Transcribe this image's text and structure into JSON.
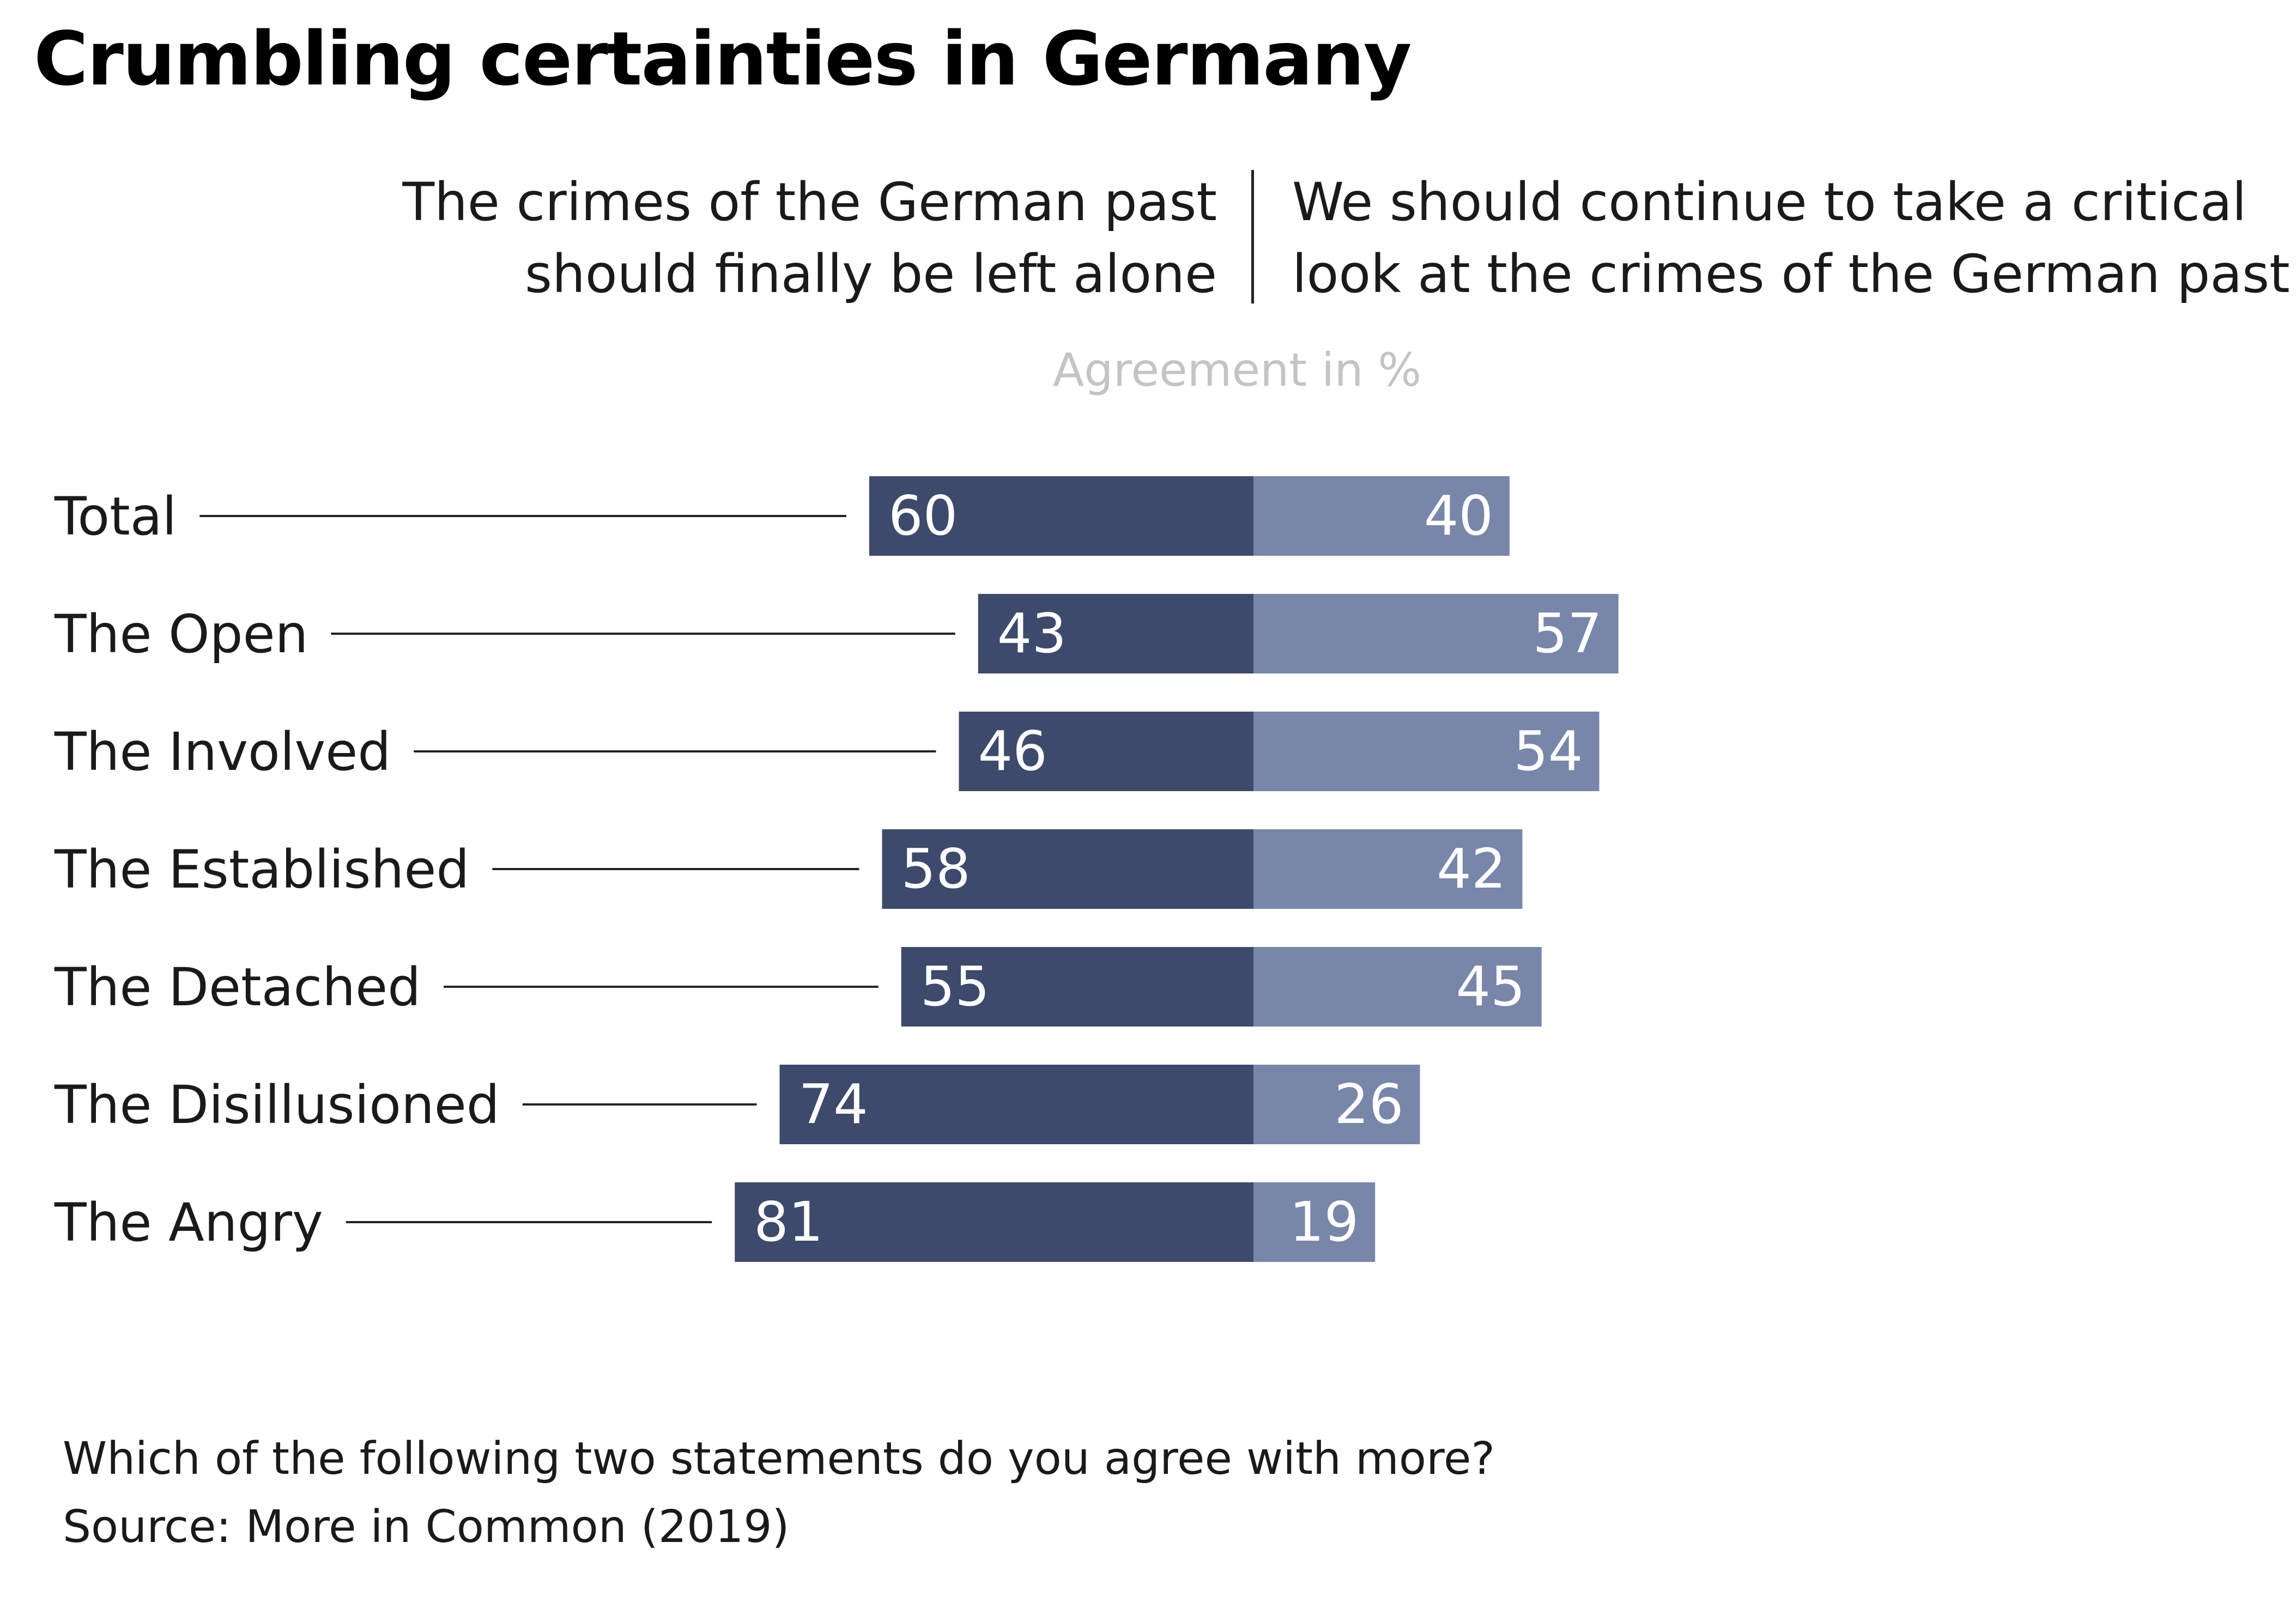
{
  "title": "Crumbling certainties in Germany",
  "header": {
    "left_line1": "The crimes of the German past",
    "left_line2": "should finally be left alone",
    "right_line1": "We should continue to take a critical",
    "right_line2": "look at the crimes of the German past"
  },
  "axis_unit": "Agreement in %",
  "chart_data": {
    "type": "bar",
    "orientation": "horizontal-diverging",
    "categories": [
      "Total",
      "The Open",
      "The Involved",
      "The Established",
      "The Detached",
      "The Disillusioned",
      "The Angry"
    ],
    "series": [
      {
        "name": "The crimes of the German past should finally be left alone",
        "values": [
          60,
          43,
          46,
          58,
          55,
          74,
          81
        ],
        "color": "#3d4a6b"
      },
      {
        "name": "We should continue to take a critical look at the crimes of the German past",
        "values": [
          40,
          57,
          54,
          42,
          45,
          26,
          19
        ],
        "color": "#7886aa"
      }
    ],
    "xlim": [
      0,
      100
    ],
    "grid": false,
    "legend": "top (column headers)"
  },
  "footer": {
    "question": "Which of the following two statements do you agree with more?",
    "source": "Source: More in Common (2019)"
  }
}
